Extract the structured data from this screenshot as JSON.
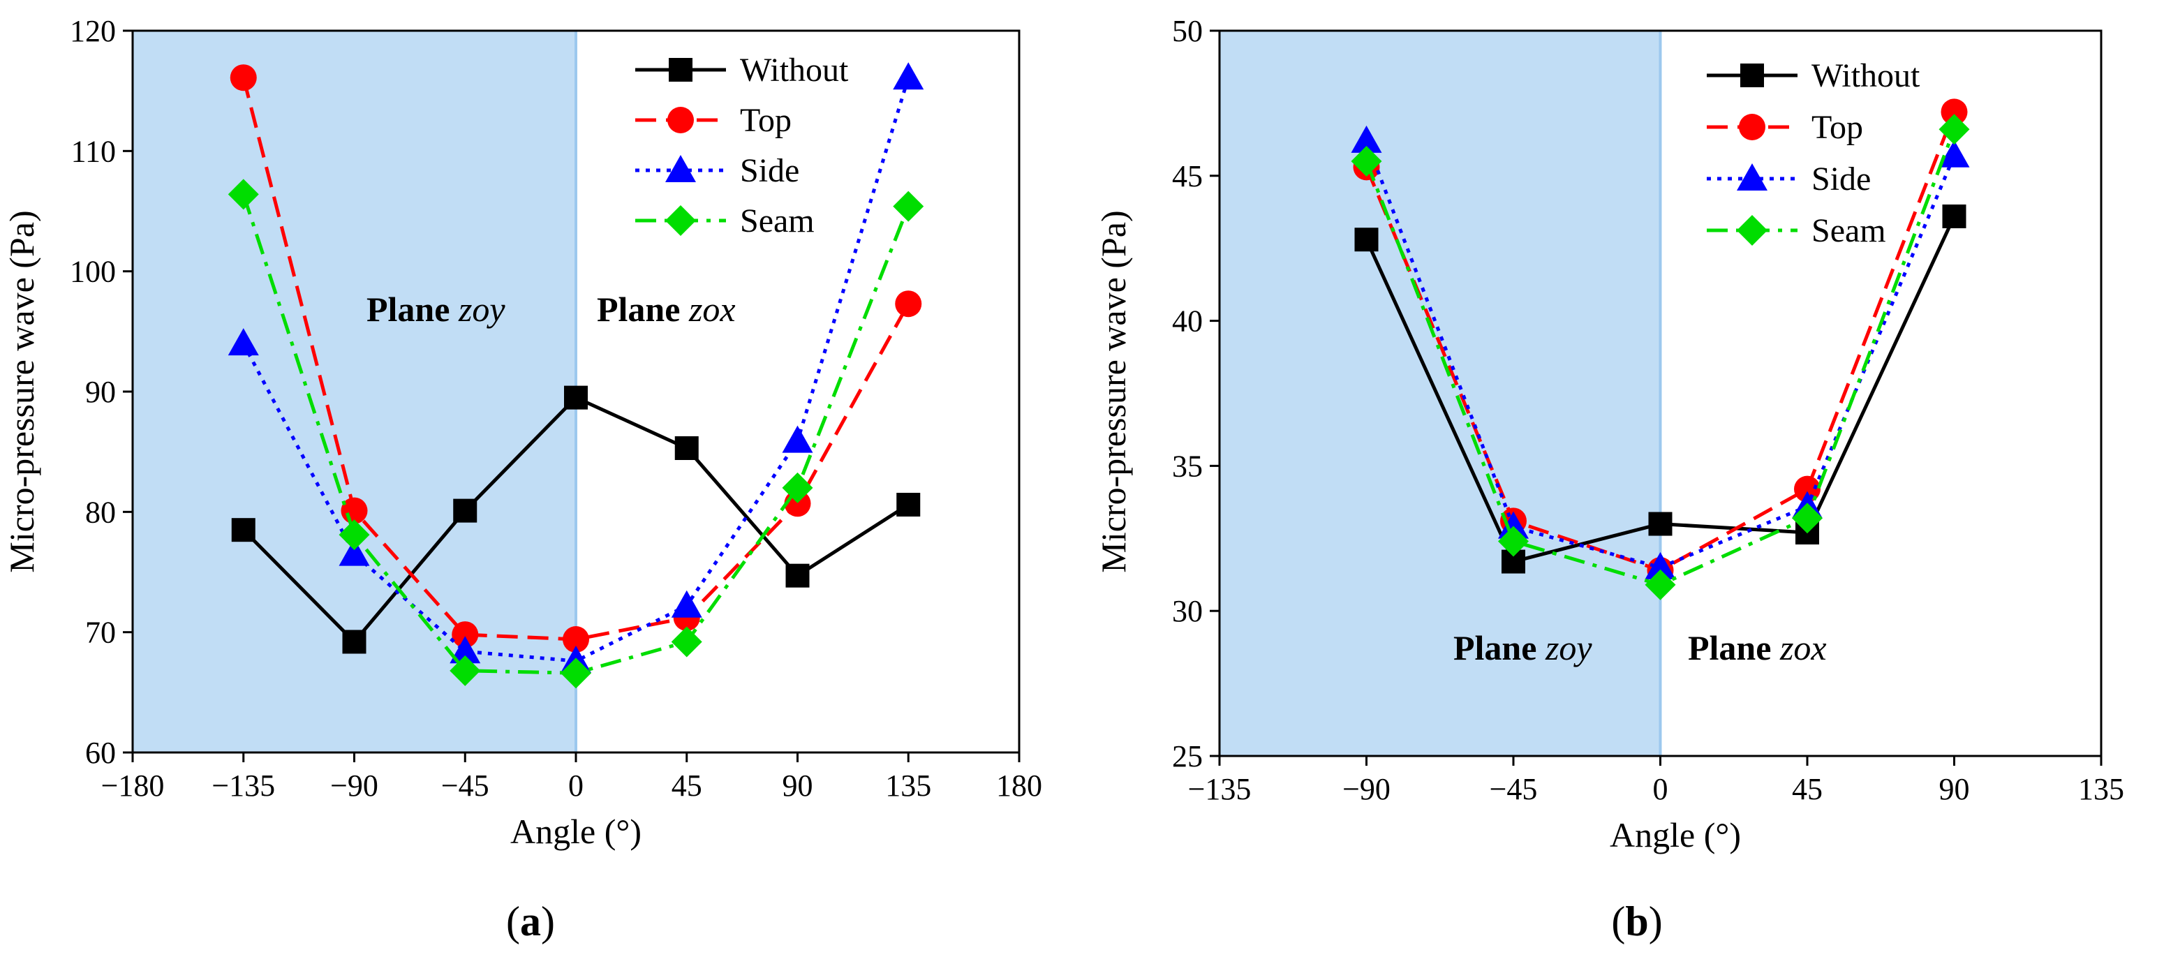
{
  "chart_data": [
    {
      "type": "line",
      "panel_label": "(a)",
      "panel_letter": "a",
      "xlabel": "Angle (°)",
      "ylabel": "Micro-pressure wave (Pa)",
      "xlim": [
        -180,
        180
      ],
      "ylim": [
        60,
        120
      ],
      "xticks": [
        -180,
        -135,
        -90,
        -45,
        0,
        45,
        90,
        135,
        180
      ],
      "xtick_labels": [
        "−180",
        "−135",
        "−90",
        "−45",
        "0",
        "45",
        "90",
        "135",
        "180"
      ],
      "yticks": [
        60,
        70,
        80,
        90,
        100,
        110,
        120
      ],
      "ytick_labels": [
        "60",
        "70",
        "80",
        "90",
        "100",
        "110",
        "120"
      ],
      "shaded_region": [
        -180,
        0
      ],
      "x": [
        -135,
        -90,
        -45,
        0,
        45,
        90,
        135
      ],
      "series": [
        {
          "name": "Without",
          "color": "#000000",
          "marker": "square",
          "dash": "solid",
          "values": [
            78.5,
            69.2,
            80.1,
            89.5,
            85.3,
            74.7,
            80.6
          ]
        },
        {
          "name": "Top",
          "color": "#ff0000",
          "marker": "circle",
          "dash": "dashed",
          "values": [
            116.1,
            80.1,
            69.8,
            69.4,
            71.2,
            80.7,
            97.3
          ]
        },
        {
          "name": "Side",
          "color": "#0000ff",
          "marker": "triangle",
          "dash": "dotted",
          "values": [
            94.0,
            76.5,
            68.4,
            67.6,
            72.2,
            85.9,
            116.1
          ]
        },
        {
          "name": "Seam",
          "color": "#00dd00",
          "marker": "diamond",
          "dash": "dashdot",
          "values": [
            106.4,
            78.1,
            66.8,
            66.6,
            69.2,
            82.0,
            105.4
          ]
        }
      ],
      "annotations": [
        {
          "bold": "Plane",
          "italic": "zoy"
        },
        {
          "bold": "Plane",
          "italic": "zox"
        }
      ],
      "legend_position": "top-right"
    },
    {
      "type": "line",
      "panel_label": "(b)",
      "panel_letter": "b",
      "xlabel": "Angle (°)",
      "ylabel": "Micro-pressure wave (Pa)",
      "xlim": [
        -135,
        135
      ],
      "ylim": [
        25,
        50
      ],
      "xticks": [
        -135,
        -90,
        -45,
        0,
        45,
        90,
        135
      ],
      "xtick_labels": [
        "−135",
        "−90",
        "−45",
        "0",
        "45",
        "90",
        "135"
      ],
      "yticks": [
        25,
        30,
        35,
        40,
        45,
        50
      ],
      "ytick_labels": [
        "25",
        "30",
        "35",
        "40",
        "45",
        "50"
      ],
      "shaded_region": [
        -135,
        0
      ],
      "x": [
        -90,
        -45,
        0,
        45,
        90
      ],
      "series": [
        {
          "name": "Without",
          "color": "#000000",
          "marker": "square",
          "dash": "solid",
          "values": [
            42.8,
            31.7,
            33.0,
            32.7,
            43.6
          ]
        },
        {
          "name": "Top",
          "color": "#ff0000",
          "marker": "circle",
          "dash": "dashed",
          "values": [
            45.3,
            33.1,
            31.4,
            34.2,
            47.2
          ]
        },
        {
          "name": "Side",
          "color": "#0000ff",
          "marker": "triangle",
          "dash": "dotted",
          "values": [
            46.2,
            32.9,
            31.5,
            33.6,
            45.7
          ]
        },
        {
          "name": "Seam",
          "color": "#00dd00",
          "marker": "diamond",
          "dash": "dashdot",
          "values": [
            45.5,
            32.4,
            30.9,
            33.2,
            46.6
          ]
        }
      ],
      "annotations": [
        {
          "bold": "Plane",
          "italic": "zoy"
        },
        {
          "bold": "Plane",
          "italic": "zox"
        }
      ],
      "legend_position": "top-right"
    }
  ],
  "style": {
    "shade_color": "#c1ddf5",
    "divider_color": "#9cc8ee"
  }
}
